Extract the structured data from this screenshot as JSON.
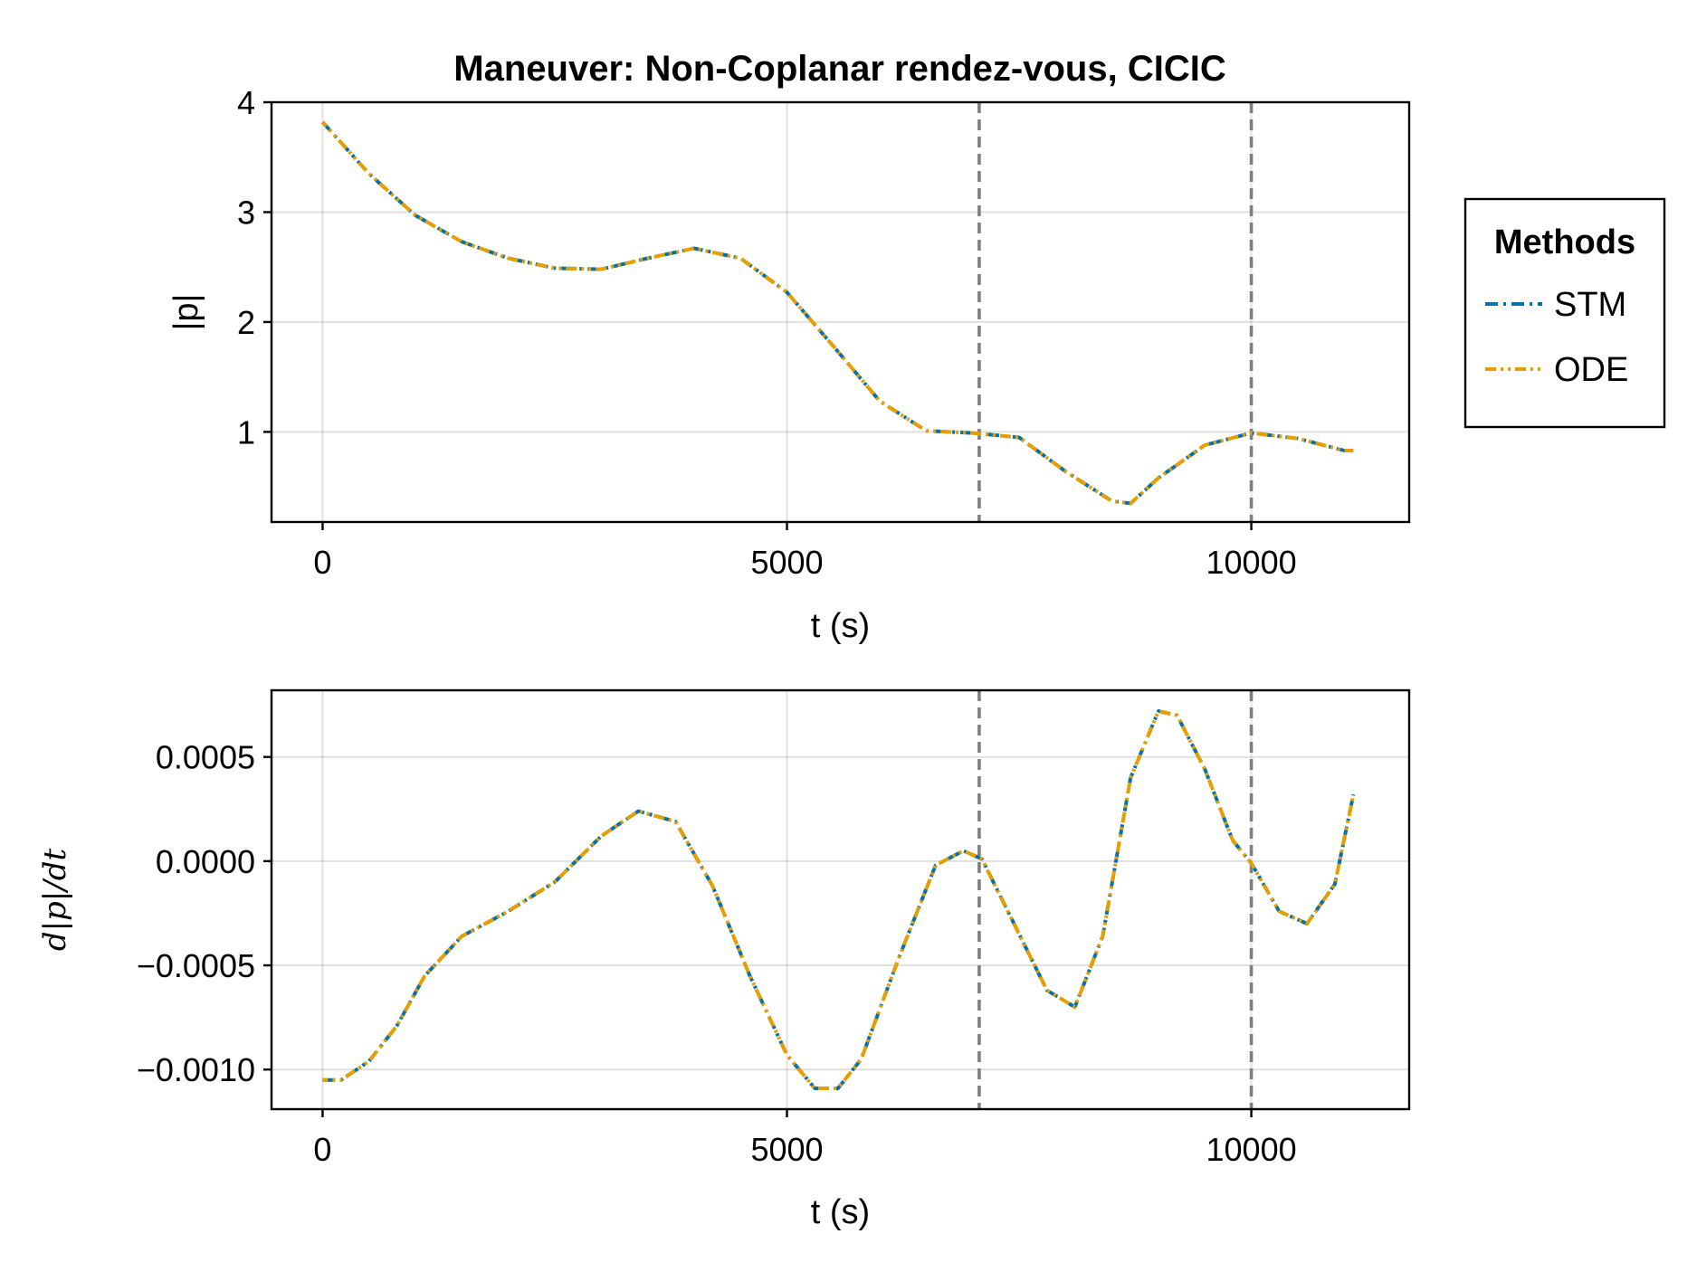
{
  "chart_data": [
    {
      "type": "line",
      "title": "Maneuver: Non-Coplanar rendez-vous, CICIC",
      "xlabel": "t (s)",
      "ylabel": "|p|",
      "xlim": [
        -550,
        11700
      ],
      "ylim": [
        0.18,
        4.0
      ],
      "xticks": [
        0,
        5000,
        10000
      ],
      "xtick_labels": [
        "0",
        "5000",
        "10000"
      ],
      "yticks": [
        1,
        2,
        3,
        4
      ],
      "ytick_labels": [
        "1",
        "2",
        "3",
        "4"
      ],
      "grid": true,
      "vertical_markers": [
        7070,
        10000
      ],
      "series": [
        {
          "name": "STM",
          "color": "#0072b2",
          "style": "dashdot",
          "x": [
            0,
            500,
            1000,
            1500,
            2000,
            2500,
            3000,
            3500,
            4000,
            4500,
            5000,
            5500,
            6000,
            6500,
            7000,
            7500,
            8000,
            8500,
            8700,
            9000,
            9500,
            10000,
            10500,
            11000,
            11100
          ],
          "y": [
            3.82,
            3.35,
            2.97,
            2.73,
            2.58,
            2.49,
            2.48,
            2.58,
            2.67,
            2.58,
            2.27,
            1.78,
            1.28,
            1.01,
            0.99,
            0.95,
            0.64,
            0.37,
            0.35,
            0.58,
            0.88,
            0.99,
            0.94,
            0.83,
            0.83
          ]
        },
        {
          "name": "ODE",
          "color": "#e69f00",
          "style": "dashdotdot",
          "x": [
            0,
            500,
            1000,
            1500,
            2000,
            2500,
            3000,
            3500,
            4000,
            4500,
            5000,
            5500,
            6000,
            6500,
            7000,
            7500,
            8000,
            8500,
            8700,
            9000,
            9500,
            10000,
            10500,
            11000,
            11100
          ],
          "y": [
            3.82,
            3.35,
            2.97,
            2.73,
            2.58,
            2.49,
            2.48,
            2.58,
            2.67,
            2.58,
            2.27,
            1.78,
            1.28,
            1.01,
            0.99,
            0.95,
            0.64,
            0.37,
            0.35,
            0.58,
            0.88,
            0.99,
            0.94,
            0.83,
            0.83
          ]
        }
      ],
      "legend": {
        "title": "Methods",
        "entries": [
          "STM",
          "ODE"
        ],
        "placement": "right"
      }
    },
    {
      "type": "line",
      "title": "",
      "xlabel": "t (s)",
      "ylabel": "d|p|/dt",
      "xlim": [
        -550,
        11700
      ],
      "ylim": [
        -0.00119,
        0.00082
      ],
      "xticks": [
        0,
        5000,
        10000
      ],
      "xtick_labels": [
        "0",
        "5000",
        "10000"
      ],
      "yticks": [
        0.0005,
        0.0,
        -0.0005,
        -0.001
      ],
      "ytick_labels": [
        "0.0005",
        "0.0000",
        "−0.0005",
        "−0.0010"
      ],
      "grid": true,
      "vertical_markers": [
        7070,
        10000
      ],
      "series": [
        {
          "name": "STM",
          "color": "#0072b2",
          "style": "dashdot",
          "x": [
            0,
            200,
            500,
            800,
            1100,
            1500,
            2000,
            2500,
            3000,
            3400,
            3800,
            4200,
            4600,
            5000,
            5300,
            5550,
            5800,
            6200,
            6600,
            6900,
            7100,
            7400,
            7800,
            8100,
            8400,
            8700,
            9000,
            9200,
            9500,
            9800,
            10000,
            10300,
            10600,
            10900,
            11100
          ],
          "y": [
            -0.00105,
            -0.00105,
            -0.00096,
            -0.00079,
            -0.00055,
            -0.00036,
            -0.00024,
            -0.0001,
            0.00012,
            0.00024,
            0.00019,
            -0.00012,
            -0.00055,
            -0.00093,
            -0.00109,
            -0.00109,
            -0.00095,
            -0.00047,
            -2e-05,
            5e-05,
            1e-05,
            -0.00026,
            -0.00062,
            -0.0007,
            -0.00036,
            0.0004,
            0.00072,
            0.0007,
            0.00044,
            0.0001,
            -1e-05,
            -0.00024,
            -0.0003,
            -0.00011,
            0.00032
          ]
        },
        {
          "name": "ODE",
          "color": "#e69f00",
          "style": "dashdotdot",
          "x": [
            0,
            200,
            500,
            800,
            1100,
            1500,
            2000,
            2500,
            3000,
            3400,
            3800,
            4200,
            4600,
            5000,
            5300,
            5550,
            5800,
            6200,
            6600,
            6900,
            7100,
            7400,
            7800,
            8100,
            8400,
            8700,
            9000,
            9200,
            9500,
            9800,
            10000,
            10300,
            10600,
            10900,
            11100
          ],
          "y": [
            -0.00105,
            -0.00105,
            -0.00096,
            -0.00079,
            -0.00055,
            -0.00036,
            -0.00024,
            -0.0001,
            0.00012,
            0.00024,
            0.00019,
            -0.00012,
            -0.00055,
            -0.00093,
            -0.00109,
            -0.00109,
            -0.00095,
            -0.00047,
            -2e-05,
            5e-05,
            1e-05,
            -0.00026,
            -0.00062,
            -0.0007,
            -0.00036,
            0.0004,
            0.00072,
            0.0007,
            0.00044,
            0.0001,
            -1e-05,
            -0.00024,
            -0.0003,
            -0.00011,
            0.00032
          ]
        }
      ]
    }
  ]
}
